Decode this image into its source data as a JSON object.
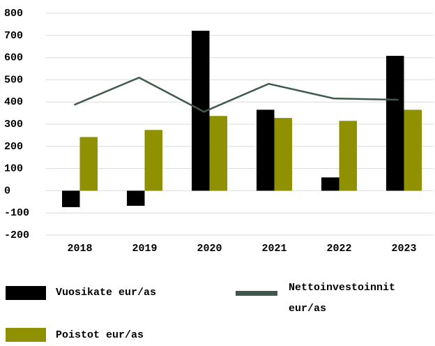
{
  "chart_data": {
    "type": "bar",
    "categories": [
      "2018",
      "2019",
      "2020",
      "2021",
      "2022",
      "2023"
    ],
    "series": [
      {
        "name": "Vuosikate eur/as",
        "color": "#000000",
        "type": "bar",
        "values": [
          -74,
          -68,
          721,
          365,
          60,
          608
        ]
      },
      {
        "name": "Poistot eur/as",
        "color": "#8f9100",
        "type": "bar",
        "values": [
          242,
          274,
          337,
          328,
          315,
          365
        ]
      },
      {
        "name": "Nettoinvestoinnit eur/as",
        "color": "#3f5a4c",
        "type": "line",
        "values": [
          387,
          510,
          356,
          482,
          416,
          410
        ]
      }
    ],
    "ylim": [
      -200,
      800
    ],
    "yticks": [
      -200,
      -100,
      0,
      100,
      200,
      300,
      400,
      500,
      600,
      700,
      800
    ],
    "grid": true
  }
}
